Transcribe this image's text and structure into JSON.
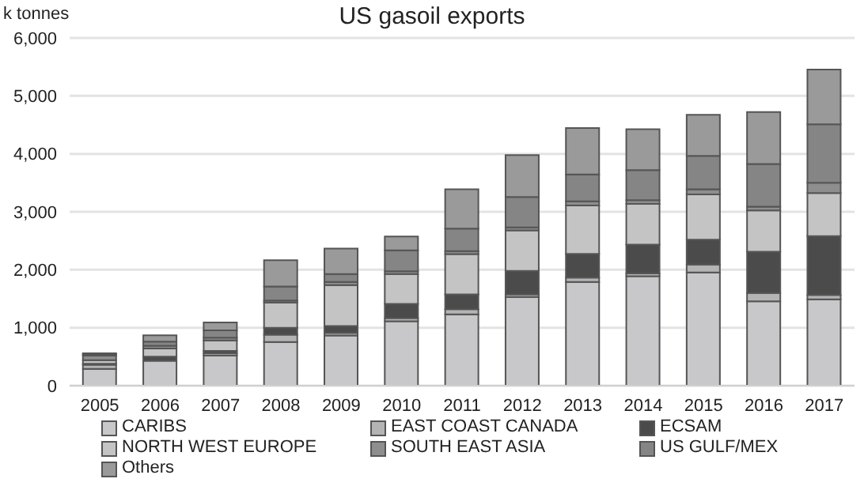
{
  "chart_data": {
    "type": "bar",
    "title": "US gasoil exports",
    "ylabel": "k tonnes",
    "stacked": true,
    "grid": "y",
    "legend": "bottom",
    "categories": [
      "2005",
      "2006",
      "2007",
      "2008",
      "2009",
      "2010",
      "2011",
      "2012",
      "2013",
      "2014",
      "2015",
      "2016",
      "2017"
    ],
    "ylim": [
      0,
      6000
    ],
    "yticks": [
      {
        "value": 0,
        "label": "0"
      },
      {
        "value": 1000,
        "label": "1,000"
      },
      {
        "value": 2000,
        "label": "2,000"
      },
      {
        "value": 3000,
        "label": "3,000"
      },
      {
        "value": 4000,
        "label": "4,000"
      },
      {
        "value": 5000,
        "label": "5,000"
      },
      {
        "value": 6000,
        "label": "6,000"
      }
    ],
    "series": [
      {
        "name": "CARIBS",
        "color": "#c8c8ca",
        "values": [
          290,
          430,
          520,
          755,
          865,
          1110,
          1230,
          1530,
          1790,
          1890,
          1955,
          1455,
          1490
        ]
      },
      {
        "name": "EAST COAST CANADA",
        "color": "#b4b4b4",
        "values": [
          70,
          null,
          40,
          125,
          45,
          55,
          90,
          45,
          75,
          45,
          135,
          145,
          75
        ]
      },
      {
        "name": "ECSAM",
        "color": "#4b4b4b",
        "values": [
          20,
          70,
          40,
          120,
          120,
          245,
          255,
          405,
          410,
          500,
          430,
          710,
          1015
        ]
      },
      {
        "name": "NORTH WEST EUROPE",
        "color": "#c4c4c4",
        "values": [
          60,
          140,
          180,
          435,
          705,
          515,
          695,
          700,
          835,
          700,
          780,
          715,
          745
        ]
      },
      {
        "name": "SOUTH EAST ASIA",
        "color": "#8e8e8e",
        "values": [
          80,
          50,
          50,
          35,
          55,
          50,
          50,
          50,
          70,
          65,
          90,
          65,
          175
        ]
      },
      {
        "name": "US GULF/MEX",
        "color": "#858585",
        "values": [
          20,
          70,
          125,
          240,
          135,
          360,
          390,
          525,
          465,
          520,
          575,
          735,
          1010
        ]
      },
      {
        "name": "Others",
        "color": "#9a9a9a",
        "values": [
          20,
          110,
          135,
          455,
          440,
          240,
          680,
          725,
          800,
          705,
          710,
          895,
          945
        ]
      }
    ]
  }
}
